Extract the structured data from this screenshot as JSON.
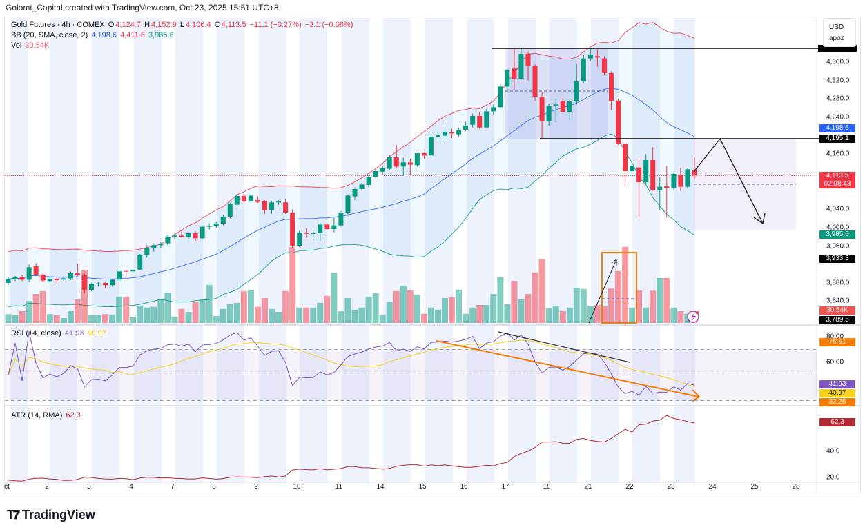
{
  "header": {
    "attribution": "Golomt_Capital created with TradingView.com, Oct 23, 2025 15:51 UTC+8"
  },
  "legend": {
    "symbol": "Gold Futures · 4h · COMEX",
    "o_label": "O",
    "o": "4,124.7",
    "h_label": "H",
    "h": "4,152.9",
    "l_label": "L",
    "l": "4,106.4",
    "c_label": "C",
    "c": "4,113.5",
    "change": "−11.1 (−0.27%)",
    "change2": "−3.1 (−0.08%)",
    "bb_label": "BB (20, SMA, close, 2)",
    "bb_mid": "4,198.6",
    "bb_upper": "4,411.6",
    "bb_lower": "3,985.6",
    "vol_label": "Vol",
    "vol": "30.54K"
  },
  "rsi_legend": {
    "label": "RSI (14, close)",
    "value": "41.93",
    "ma": "40.97"
  },
  "atr_legend": {
    "label": "ATR (14, RMA)",
    "value": "62.3"
  },
  "currency": {
    "currency": "USD",
    "unit": "apoz"
  },
  "price_axis": {
    "ticks": [
      "4,360.0",
      "4,320.0",
      "4,280.0",
      "4,240.0",
      "4,160.0",
      "4,040.0",
      "4,000.0",
      "3,960.0",
      "3,880.0",
      "3,840.0"
    ],
    "labels": [
      {
        "text": "4,198.6",
        "color": "#2962ff"
      },
      {
        "text": "4,195.1",
        "color": "#000000"
      },
      {
        "text": "4,113.5",
        "sub": "02:08:43",
        "color": "#f23645"
      },
      {
        "text": "3,985.6",
        "color": "#089981"
      },
      {
        "text": "3,933.3",
        "color": "#000000"
      },
      {
        "text": "30.54K",
        "color": "#ef5350"
      },
      {
        "text": "3,789.5",
        "color": "#000000"
      }
    ]
  },
  "rsi_axis": {
    "ticks": [
      "80.00",
      "60.00"
    ],
    "labels": [
      {
        "text": "75.61",
        "color": "#f57c00"
      },
      {
        "text": "41.93",
        "color": "#7e57c2"
      },
      {
        "text": "40.97",
        "color": "#f7d21a",
        "dark": true
      },
      {
        "text": "32.26",
        "color": "#f57c00"
      }
    ]
  },
  "atr_axis": {
    "ticks": [
      "40.0",
      "20.0"
    ],
    "labels": [
      {
        "text": "62.3",
        "color": "#b22833"
      }
    ]
  },
  "time_axis": {
    "ticks": [
      "ct",
      "2",
      "3",
      "4",
      "7",
      "8",
      "9",
      "10",
      "11",
      "14",
      "15",
      "16",
      "17",
      "18",
      "21",
      "22",
      "23",
      "24",
      "25",
      "28"
    ]
  },
  "branding": {
    "name": "TradingView"
  },
  "colors": {
    "up": "#089981",
    "down": "#f23645",
    "bb_upper": "#f23645",
    "bb_mid": "#2962ff",
    "bb_lower": "#089981",
    "rsi": "#7e57c2",
    "rsi_ma": "#f7d21a",
    "atr": "#b22833",
    "session": "#e8eefb"
  },
  "chart_data": {
    "type": "candlestick",
    "symbol": "Gold Futures",
    "interval": "4h",
    "ylim": [
      3780,
      4440
    ],
    "x_ticks": [
      "ct",
      "2",
      "3",
      "4",
      "7",
      "8",
      "9",
      "10",
      "11",
      "14",
      "15",
      "16",
      "17",
      "18",
      "21",
      "22",
      "23",
      "24",
      "25",
      "28"
    ],
    "candles_ohlc": [
      [
        3880,
        3893,
        3875,
        3888
      ],
      [
        3888,
        3895,
        3884,
        3893
      ],
      [
        3893,
        3898,
        3884,
        3887
      ],
      [
        3887,
        3920,
        3882,
        3914
      ],
      [
        3916,
        3922,
        3895,
        3898
      ],
      [
        3898,
        3903,
        3882,
        3885
      ],
      [
        3884,
        3892,
        3880,
        3889
      ],
      [
        3889,
        3892,
        3878,
        3886
      ],
      [
        3887,
        3891,
        3884,
        3890
      ],
      [
        3890,
        3905,
        3886,
        3901
      ],
      [
        3901,
        3922,
        3895,
        3897
      ],
      [
        3897,
        3900,
        3858,
        3865
      ],
      [
        3865,
        3880,
        3862,
        3878
      ],
      [
        3878,
        3882,
        3872,
        3879
      ],
      [
        3880,
        3882,
        3868,
        3875
      ],
      [
        3875,
        3889,
        3872,
        3887
      ],
      [
        3887,
        3910,
        3884,
        3905
      ],
      [
        3906,
        3909,
        3893,
        3905
      ],
      [
        3905,
        3910,
        3901,
        3908
      ],
      [
        3909,
        3943,
        3907,
        3941
      ],
      [
        3941,
        3962,
        3935,
        3955
      ],
      [
        3955,
        3966,
        3948,
        3962
      ],
      [
        3962,
        3970,
        3955,
        3965
      ],
      [
        3966,
        3985,
        3962,
        3980
      ],
      [
        3980,
        3988,
        3975,
        3983
      ],
      [
        3983,
        3995,
        3978,
        3980
      ],
      [
        3980,
        3990,
        3976,
        3988
      ],
      [
        3988,
        3992,
        3972,
        3977
      ],
      [
        3977,
        4005,
        3975,
        4002
      ],
      [
        4002,
        4010,
        3996,
        4004
      ],
      [
        4003,
        4012,
        4000,
        4009
      ],
      [
        4009,
        4028,
        4005,
        4024
      ],
      [
        4024,
        4055,
        4020,
        4052
      ],
      [
        4050,
        4072,
        4048,
        4069
      ],
      [
        4069,
        4073,
        4055,
        4057
      ],
      [
        4058,
        4072,
        4054,
        4070
      ],
      [
        4060,
        4068,
        4054,
        4056
      ],
      [
        4058,
        4060,
        4030,
        4039
      ],
      [
        4039,
        4058,
        4030,
        4055
      ],
      [
        4055,
        4060,
        4050,
        4057
      ],
      [
        4055,
        4062,
        4030,
        4033
      ],
      [
        4033,
        4040,
        3955,
        3961
      ],
      [
        3961,
        3993,
        3958,
        3989
      ],
      [
        3989,
        3999,
        3978,
        3987
      ],
      [
        3987,
        3996,
        3972,
        3988
      ],
      [
        3988,
        4010,
        3972,
        4007
      ],
      [
        4007,
        4010,
        3995,
        3997
      ],
      [
        3997,
        4022,
        3990,
        4005
      ],
      [
        4005,
        4036,
        4002,
        4033
      ],
      [
        4033,
        4072,
        4025,
        4070
      ],
      [
        4068,
        4088,
        4060,
        4084
      ],
      [
        4084,
        4097,
        4080,
        4094
      ],
      [
        4093,
        4115,
        4088,
        4111
      ],
      [
        4111,
        4128,
        4108,
        4123
      ],
      [
        4122,
        4135,
        4115,
        4129
      ],
      [
        4128,
        4158,
        4125,
        4153
      ],
      [
        4153,
        4180,
        4130,
        4133
      ],
      [
        4133,
        4152,
        4113,
        4142
      ],
      [
        4142,
        4150,
        4115,
        4137
      ],
      [
        4136,
        4162,
        4133,
        4162
      ],
      [
        4162,
        4165,
        4150,
        4157
      ],
      [
        4157,
        4200,
        4157,
        4198
      ],
      [
        4198,
        4207,
        4186,
        4201
      ],
      [
        4200,
        4222,
        4185,
        4207
      ],
      [
        4207,
        4215,
        4195,
        4205
      ],
      [
        4203,
        4218,
        4198,
        4212
      ],
      [
        4213,
        4230,
        4210,
        4222
      ],
      [
        4224,
        4248,
        4218,
        4243
      ],
      [
        4243,
        4252,
        4215,
        4218
      ],
      [
        4218,
        4258,
        4218,
        4253
      ],
      [
        4253,
        4268,
        4245,
        4262
      ],
      [
        4262,
        4312,
        4260,
        4307
      ],
      [
        4307,
        4345,
        4300,
        4342
      ],
      [
        4346,
        4392,
        4300,
        4324
      ],
      [
        4324,
        4392,
        4322,
        4378
      ],
      [
        4378,
        4383,
        4320,
        4351
      ],
      [
        4351,
        4355,
        4275,
        4285
      ],
      [
        4285,
        4295,
        4195,
        4231
      ],
      [
        4231,
        4270,
        4222,
        4265
      ],
      [
        4265,
        4280,
        4230,
        4268
      ],
      [
        4275,
        4282,
        4250,
        4252
      ],
      [
        4252,
        4280,
        4235,
        4275
      ],
      [
        4275,
        4355,
        4268,
        4318
      ],
      [
        4318,
        4375,
        4315,
        4368
      ],
      [
        4368,
        4390,
        4362,
        4375
      ],
      [
        4373,
        4388,
        4350,
        4370
      ],
      [
        4368,
        4373,
        4332,
        4336
      ],
      [
        4336,
        4340,
        4255,
        4276
      ],
      [
        4276,
        4280,
        4180,
        4183
      ],
      [
        4183,
        4190,
        4090,
        4123
      ],
      [
        4123,
        4140,
        4110,
        4135
      ],
      [
        4131,
        4150,
        4018,
        4099
      ],
      [
        4099,
        4160,
        4095,
        4147
      ],
      [
        4147,
        4175,
        4080,
        4082
      ],
      [
        4082,
        4110,
        4038,
        4089
      ],
      [
        4090,
        4135,
        4022,
        4087
      ],
      [
        4087,
        4120,
        4083,
        4117
      ],
      [
        4115,
        4130,
        4080,
        4089
      ],
      [
        4089,
        4130,
        4085,
        4127
      ],
      [
        4124.7,
        4152.9,
        4106.4,
        4113.5
      ]
    ],
    "volume_k": [
      24,
      21,
      32,
      60,
      79,
      87,
      24,
      21,
      13,
      34,
      64,
      145,
      21,
      21,
      24,
      23,
      72,
      72,
      17,
      47,
      42,
      44,
      66,
      83,
      17,
      38,
      30,
      57,
      64,
      104,
      19,
      38,
      51,
      55,
      87,
      89,
      44,
      68,
      38,
      30,
      87,
      208,
      42,
      42,
      42,
      55,
      74,
      136,
      32,
      68,
      36,
      42,
      72,
      81,
      23,
      57,
      87,
      102,
      89,
      77,
      25,
      42,
      36,
      68,
      70,
      91,
      25,
      42,
      49,
      49,
      79,
      125,
      51,
      115,
      64,
      79,
      138,
      174,
      40,
      47,
      32,
      42,
      96,
      93,
      47,
      49,
      45,
      94,
      142,
      208,
      42,
      89,
      42,
      88,
      123,
      123,
      42,
      32,
      25,
      30.54
    ],
    "indicators": {
      "bb": {
        "period": 20,
        "type": "SMA",
        "source": "close",
        "mult": 2,
        "last": {
          "basis": 4198.6,
          "upper": 4411.6,
          "lower": 3985.6
        }
      },
      "rsi": {
        "period": 14,
        "last": 41.93,
        "ma_last": 40.97,
        "levels": [
          70,
          50,
          30
        ],
        "ylim": [
          20,
          85
        ]
      },
      "atr": {
        "period": 14,
        "smoothing": "RMA",
        "last": 62.3,
        "ylim": [
          15,
          75
        ]
      }
    },
    "drawings": {
      "resistance_level": "upper horizontal line near top of range",
      "support_level": 4195.1,
      "level_3933": 3933.3,
      "level_3789": 3789.5
    }
  }
}
